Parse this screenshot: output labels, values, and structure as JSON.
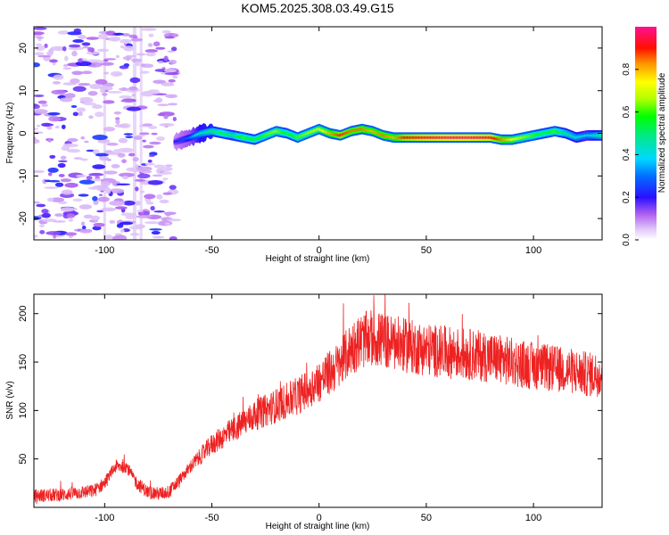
{
  "title": "KOM5.2025.308.03.49.G15",
  "chart_data": [
    {
      "type": "heatmap",
      "xlabel": "Height of straight line (km)",
      "ylabel": "Frequency (Hz)",
      "xlim": [
        -133,
        132
      ],
      "ylim": [
        -25,
        25
      ],
      "xticks": [
        -100,
        -50,
        0,
        50,
        100
      ],
      "xtick_labels": [
        "-100",
        "-50",
        "0",
        "50",
        "100"
      ],
      "yticks": [
        -20,
        -10,
        0,
        10,
        20
      ],
      "ytick_labels": [
        "-20",
        "-10",
        "0",
        "10",
        "20"
      ],
      "colorbar": {
        "label": "Normalized spectral amplitude",
        "range": [
          0,
          1
        ],
        "ticks": [
          0.0,
          0.2,
          0.4,
          0.6,
          0.8
        ],
        "tick_labels": [
          "0.0",
          "0.2",
          "0.4",
          "0.6",
          "0.8"
        ]
      },
      "ridge": {
        "x": [
          -67,
          -60,
          -55,
          -50,
          -45,
          -40,
          -35,
          -30,
          -25,
          -20,
          -15,
          -10,
          -5,
          0,
          5,
          10,
          15,
          20,
          25,
          30,
          35,
          40,
          50,
          60,
          70,
          80,
          85,
          90,
          95,
          100,
          105,
          110,
          115,
          120,
          125,
          132
        ],
        "freq": [
          -2,
          -1,
          0,
          0.5,
          0,
          -0.5,
          -1,
          -1.5,
          -0.5,
          0.5,
          0,
          -1,
          0,
          1,
          0,
          -0.5,
          0.5,
          1,
          0.5,
          -0.5,
          -1,
          -1,
          -1,
          -1,
          -1,
          -1,
          -1.5,
          -1.5,
          -1,
          -0.5,
          0,
          0.5,
          0,
          -1,
          -0.5,
          -0.5
        ],
        "amplitude": [
          0.2,
          0.3,
          0.45,
          0.5,
          0.55,
          0.5,
          0.6,
          0.55,
          0.6,
          0.65,
          0.55,
          0.6,
          0.65,
          0.7,
          0.8,
          0.9,
          0.85,
          0.85,
          0.8,
          0.85,
          0.8,
          0.9,
          0.95,
          1.0,
          1.0,
          0.95,
          0.85,
          0.75,
          0.65,
          0.6,
          0.55,
          0.6,
          0.5,
          0.45,
          0.4,
          0.5
        ]
      },
      "noise_region_x": [
        -133,
        -67
      ]
    },
    {
      "type": "line",
      "xlabel": "Height of straight line (km)",
      "ylabel": "SNR (v/v)",
      "xlim": [
        -133,
        132
      ],
      "ylim": [
        0,
        220
      ],
      "xticks": [
        -100,
        -50,
        0,
        50,
        100
      ],
      "xtick_labels": [
        "-100",
        "-50",
        "0",
        "50",
        "100"
      ],
      "yticks": [
        50,
        100,
        150,
        200
      ],
      "ytick_labels": [
        "50",
        "100",
        "150",
        "200"
      ],
      "color": "#ee2222",
      "trend": {
        "x": [
          -133,
          -120,
          -105,
          -100,
          -95,
          -90,
          -85,
          -80,
          -75,
          -70,
          -65,
          -60,
          -50,
          -40,
          -30,
          -20,
          -10,
          0,
          10,
          15,
          20,
          25,
          30,
          40,
          50,
          60,
          70,
          80,
          90,
          100,
          110,
          120,
          125,
          132
        ],
        "y": [
          12,
          13,
          17,
          25,
          42,
          43,
          25,
          16,
          14,
          16,
          28,
          42,
          65,
          80,
          95,
          105,
          115,
          130,
          148,
          165,
          172,
          175,
          172,
          167,
          163,
          160,
          158,
          155,
          150,
          146,
          143,
          140,
          137,
          138
        ]
      }
    }
  ]
}
